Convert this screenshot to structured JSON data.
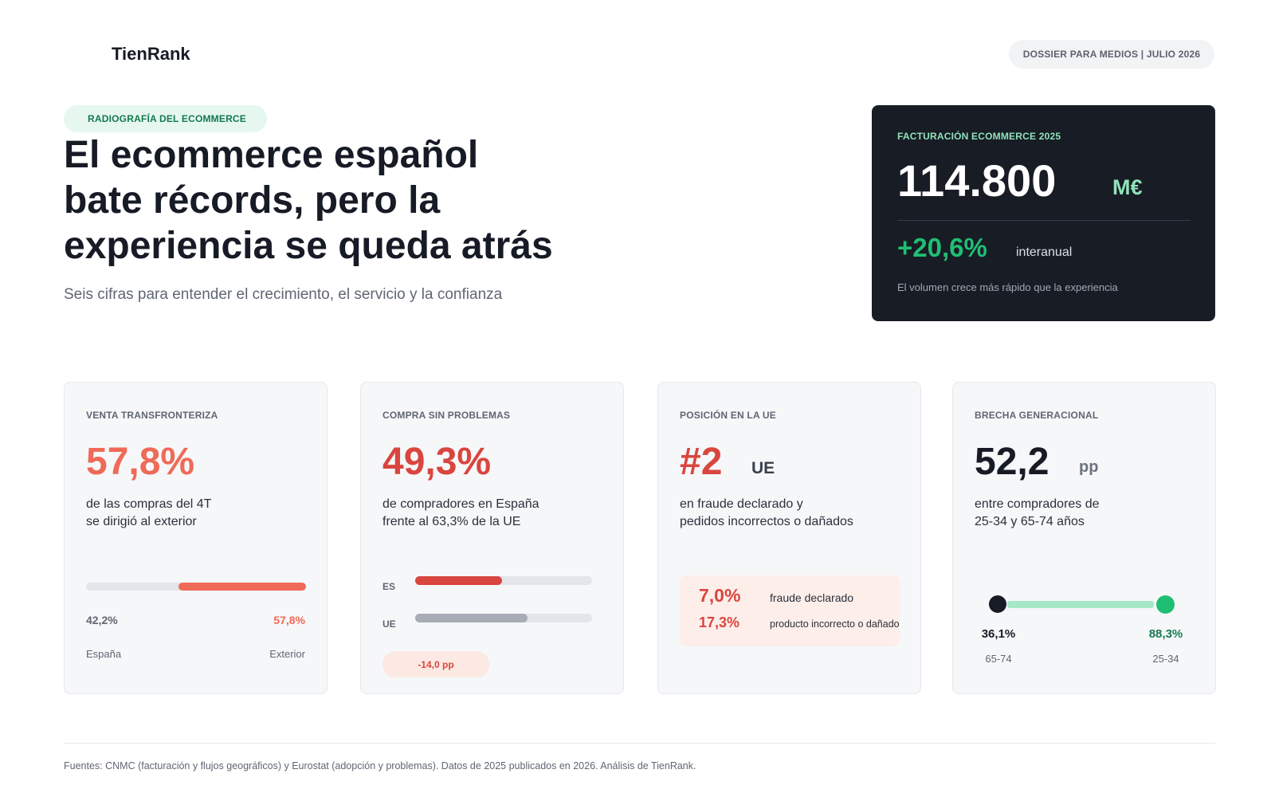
{
  "brand": {
    "name": "TienRank"
  },
  "header": {
    "dossier": "DOSSIER PARA MEDIOS | JULIO 2026"
  },
  "intro": {
    "tag": "RADIOGRAFÍA DEL ECOMMERCE",
    "title_lines": [
      "El ecommerce español",
      "bate récords, pero la",
      "experiencia se queda atrás"
    ],
    "subtitle": "Seis cifras para entender el crecimiento, el servicio y la confianza"
  },
  "hero": {
    "label": "FACTURACIÓN ECOMMERCE 2025",
    "value": "114.800",
    "unit": "M€",
    "growth": "+20,6%",
    "growth_label": "interanual",
    "note": "El volumen crece más rápido que la experiencia"
  },
  "cards": [
    {
      "label": "VENTA TRANSFRONTERIZA",
      "big": "57,8%",
      "desc_lines": [
        "de las compras del 4T",
        "se dirigió al exterior"
      ],
      "split": {
        "left_value": "42,2%",
        "right_value": "57,8%",
        "left_label": "España",
        "right_label": "Exterior",
        "left_fraction": 0.422
      }
    },
    {
      "label": "COMPRA SIN PROBLEMAS",
      "big": "49,3%",
      "desc_lines": [
        "de compradores en España",
        "frente al 63,3% de la UE"
      ],
      "bars": [
        {
          "label": "ES",
          "value": 49.3
        },
        {
          "label": "UE",
          "value": 63.3
        }
      ],
      "gap": "-14,0 pp"
    },
    {
      "label": "POSICIÓN EN LA UE",
      "big": "#2",
      "unit": "UE",
      "desc_lines": [
        "en fraude declarado y",
        "pedidos incorrectos o dañados"
      ],
      "stats": [
        {
          "value": "7,0%",
          "label": "fraude declarado"
        },
        {
          "value": "17,3%",
          "label": "producto incorrecto o dañado"
        }
      ]
    },
    {
      "label": "BRECHA GENERACIONAL",
      "big": "52,2",
      "unit": "pp",
      "desc_lines": [
        "entre compradores de",
        "25-34 y 65-74 años"
      ],
      "range": {
        "low_value": "36,1%",
        "low_label": "65-74",
        "high_value": "88,3%",
        "high_label": "25-34"
      }
    }
  ],
  "footer": {
    "sources": "Fuentes: CNMC (facturación y flujos geográficos) y Eurostat (adopción y problemas). Datos de 2025 publicados en 2026. Análisis de TienRank."
  },
  "colors": {
    "accent_coral": "#ef6a57",
    "accent_red": "#d9463f",
    "accent_green": "#1fbf73",
    "dark": "#181c25"
  }
}
